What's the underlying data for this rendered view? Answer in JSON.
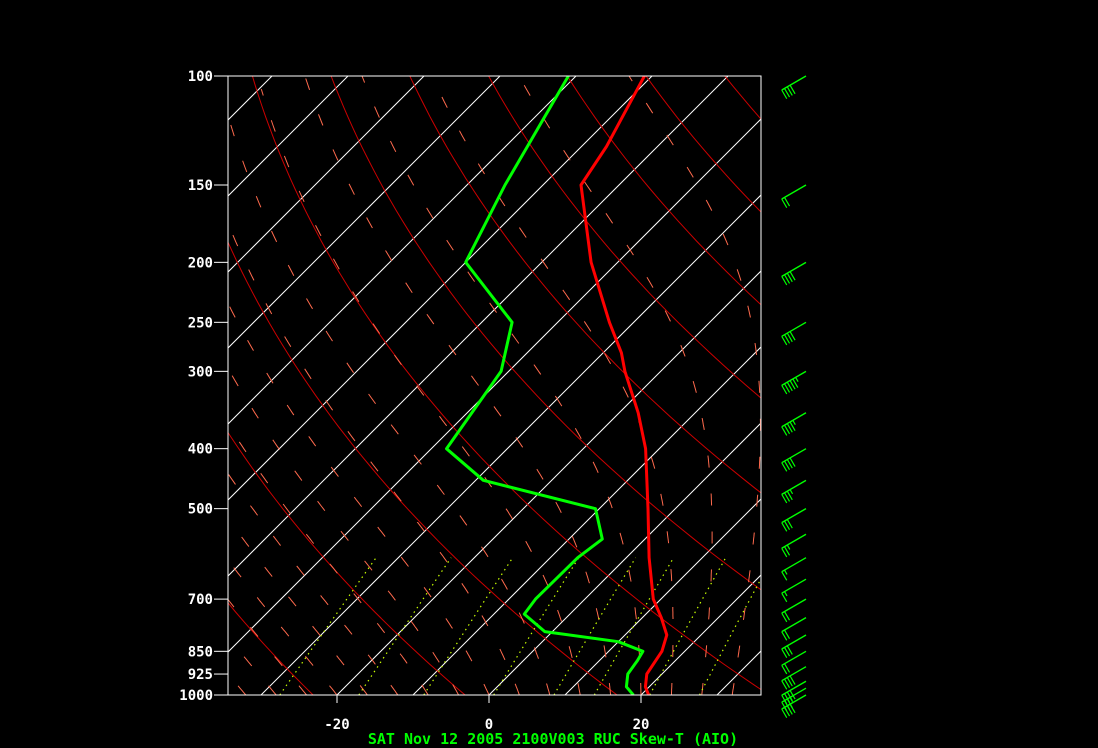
{
  "chart_data": {
    "type": "line",
    "title": "SAT Nov 12 2005 2100V003 RUC Skew-T (AIO)",
    "xlabel": "",
    "ylabel": "",
    "x_tick_labels": [
      "-20",
      "0",
      "20"
    ],
    "x_ticks": [
      -20,
      0,
      20
    ],
    "y_tick_labels": [
      "100",
      "150",
      "200",
      "250",
      "300",
      "400",
      "500",
      "700",
      "850",
      "925",
      "1000"
    ],
    "y_ticks": [
      100,
      150,
      200,
      250,
      300,
      400,
      500,
      700,
      850,
      925,
      1000
    ],
    "y_scale": "log-inverted",
    "ylim": [
      1000,
      100
    ],
    "colors": {
      "background": "#000000",
      "frame": "#ffffff",
      "isotherms": "#ffffff",
      "dry_adiabats": "#cc0000",
      "moist_adiabats": "#ff6a4d",
      "mixing_ratio": "#c8ff00",
      "temperature": "#ff0000",
      "dewpoint": "#00ff00",
      "wind_barbs": "#00ff00"
    },
    "series": [
      {
        "key": "temperature",
        "points": [
          {
            "p": 1000,
            "t": 21
          },
          {
            "p": 970,
            "t": 19.5
          },
          {
            "p": 925,
            "t": 18.0
          },
          {
            "p": 850,
            "t": 17.0
          },
          {
            "p": 800,
            "t": 15.5
          },
          {
            "p": 750,
            "t": 12.5
          },
          {
            "p": 700,
            "t": 9.0
          },
          {
            "p": 600,
            "t": 3.0
          },
          {
            "p": 500,
            "t": -3.6
          },
          {
            "p": 400,
            "t": -11.8
          },
          {
            "p": 350,
            "t": -17.5
          },
          {
            "p": 300,
            "t": -24.7
          },
          {
            "p": 280,
            "t": -27.6
          },
          {
            "p": 250,
            "t": -33.2
          },
          {
            "p": 200,
            "t": -43.5
          },
          {
            "p": 150,
            "t": -55.0
          },
          {
            "p": 130,
            "t": -56.7
          },
          {
            "p": 100,
            "t": -61.0
          }
        ]
      },
      {
        "key": "dewpoint",
        "points": [
          {
            "p": 1000,
            "t": 19
          },
          {
            "p": 970,
            "t": 17
          },
          {
            "p": 925,
            "t": 15.5
          },
          {
            "p": 880,
            "t": 15.0
          },
          {
            "p": 850,
            "t": 14.5
          },
          {
            "p": 820,
            "t": 10.0
          },
          {
            "p": 790,
            "t": -1.0
          },
          {
            "p": 740,
            "t": -6.0
          },
          {
            "p": 700,
            "t": -6.5
          },
          {
            "p": 600,
            "t": -6.4
          },
          {
            "p": 560,
            "t": -5.6
          },
          {
            "p": 500,
            "t": -10.5
          },
          {
            "p": 450,
            "t": -29.0
          },
          {
            "p": 400,
            "t": -38.0
          },
          {
            "p": 300,
            "t": -41.0
          },
          {
            "p": 250,
            "t": -46.0
          },
          {
            "p": 200,
            "t": -60.0
          },
          {
            "p": 150,
            "t": -65.0
          },
          {
            "p": 100,
            "t": -71.0
          }
        ]
      }
    ],
    "wind_barbs": [
      {
        "p": 1000,
        "speed_kt": 40
      },
      {
        "p": 975,
        "speed_kt": 35
      },
      {
        "p": 950,
        "speed_kt": 40
      },
      {
        "p": 900,
        "speed_kt": 40
      },
      {
        "p": 850,
        "speed_kt": 20
      },
      {
        "p": 800,
        "speed_kt": 30
      },
      {
        "p": 750,
        "speed_kt": 20
      },
      {
        "p": 700,
        "speed_kt": 20
      },
      {
        "p": 650,
        "speed_kt": 15
      },
      {
        "p": 600,
        "speed_kt": 15
      },
      {
        "p": 550,
        "speed_kt": 25
      },
      {
        "p": 500,
        "speed_kt": 30
      },
      {
        "p": 450,
        "speed_kt": 35
      },
      {
        "p": 400,
        "speed_kt": 40
      },
      {
        "p": 350,
        "speed_kt": 45
      },
      {
        "p": 300,
        "speed_kt": 55
      },
      {
        "p": 250,
        "speed_kt": 40
      },
      {
        "p": 200,
        "speed_kt": 40
      },
      {
        "p": 150,
        "speed_kt": 20
      },
      {
        "p": 100,
        "speed_kt": 40
      }
    ]
  }
}
